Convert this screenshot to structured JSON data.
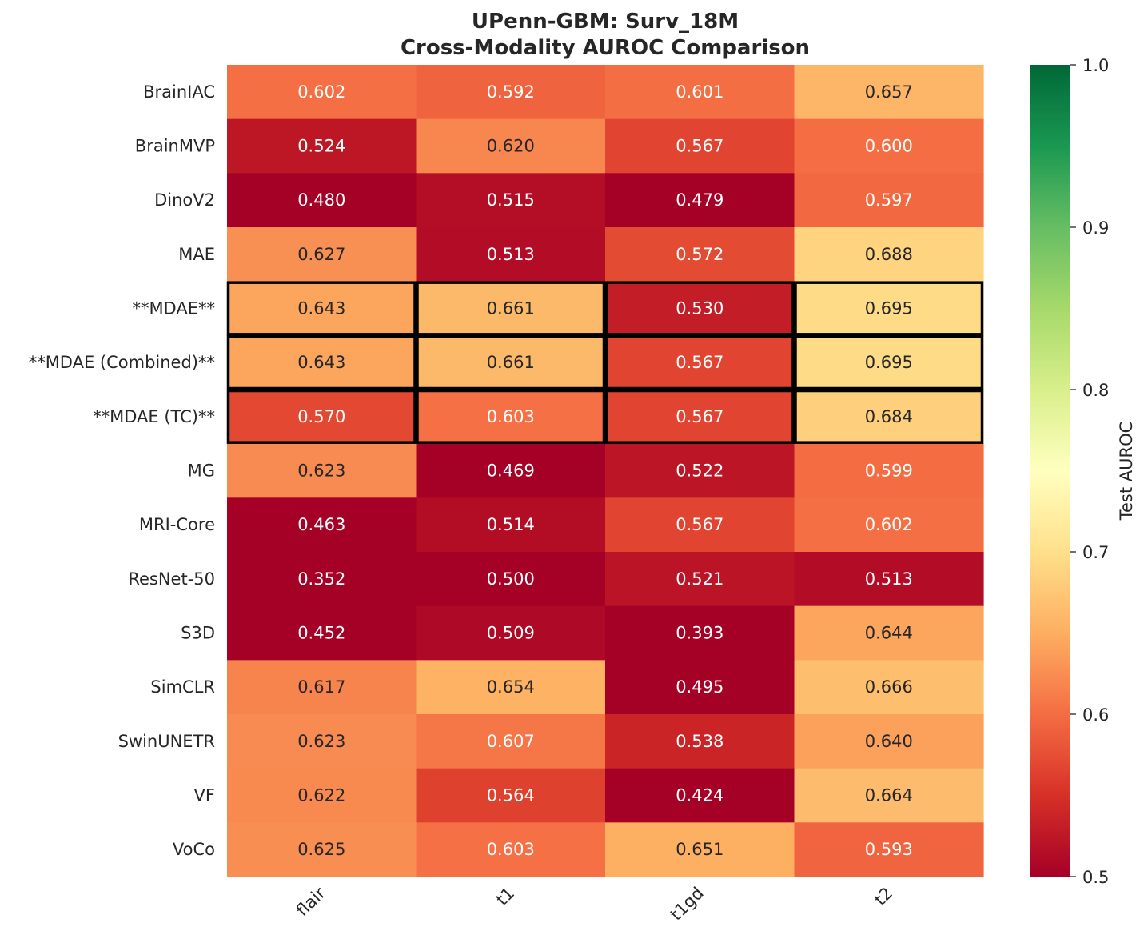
{
  "chart_data": {
    "type": "heatmap",
    "title_line1": "UPenn-GBM: Surv_18M",
    "title_line2": "Cross-Modality AUROC Comparison",
    "xlabel": "",
    "ylabel": "",
    "columns": [
      "flair",
      "t1",
      "t1gd",
      "t2"
    ],
    "rows": [
      "BrainIAC",
      "BrainMVP",
      "DinoV2",
      "MAE",
      "**MDAE**",
      "**MDAE (Combined)**",
      "**MDAE (TC)**",
      "MG",
      "MRI-Core",
      "ResNet-50",
      "S3D",
      "SimCLR",
      "SwinUNETR",
      "VF",
      "VoCo"
    ],
    "values": [
      [
        0.602,
        0.592,
        0.601,
        0.657
      ],
      [
        0.524,
        0.62,
        0.567,
        0.6
      ],
      [
        0.48,
        0.515,
        0.479,
        0.597
      ],
      [
        0.627,
        0.513,
        0.572,
        0.688
      ],
      [
        0.643,
        0.661,
        0.53,
        0.695
      ],
      [
        0.643,
        0.661,
        0.567,
        0.695
      ],
      [
        0.57,
        0.603,
        0.567,
        0.684
      ],
      [
        0.623,
        0.469,
        0.522,
        0.599
      ],
      [
        0.463,
        0.514,
        0.567,
        0.602
      ],
      [
        0.352,
        0.5,
        0.521,
        0.513
      ],
      [
        0.452,
        0.509,
        0.393,
        0.644
      ],
      [
        0.617,
        0.654,
        0.495,
        0.666
      ],
      [
        0.623,
        0.607,
        0.538,
        0.64
      ],
      [
        0.622,
        0.564,
        0.424,
        0.664
      ],
      [
        0.625,
        0.603,
        0.651,
        0.593
      ]
    ],
    "value_format": "0.000",
    "highlighted_rows": [
      "**MDAE**",
      "**MDAE (Combined)**",
      "**MDAE (TC)**"
    ],
    "colormap": "RdYlGn",
    "color_range": [
      0.5,
      1.0
    ],
    "colorbar": {
      "label": "Test AUROC",
      "ticks": [
        "0.5",
        "0.6",
        "0.7",
        "0.8",
        "0.9",
        "1.0"
      ]
    },
    "colors": {
      "dark_text": "#262626",
      "light_text": "#ffffff",
      "highlight_border": "#000000"
    }
  }
}
